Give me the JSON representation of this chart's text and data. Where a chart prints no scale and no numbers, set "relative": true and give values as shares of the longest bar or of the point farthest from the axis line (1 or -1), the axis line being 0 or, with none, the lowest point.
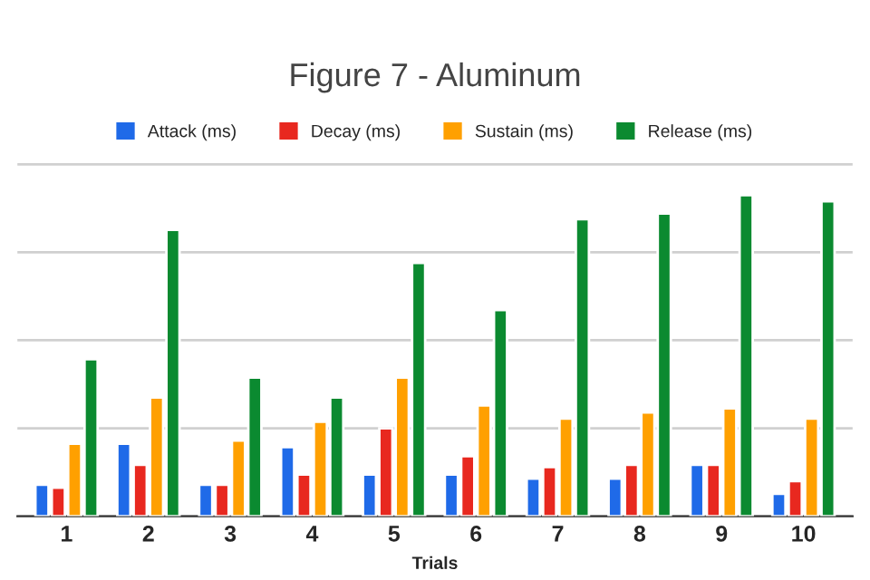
{
  "chart_data": {
    "type": "bar",
    "title": "Figure 7 - Aluminum",
    "xlabel": "Trials",
    "relative": true,
    "grid": "y",
    "legend": "top",
    "categories": [
      "1",
      "2",
      "3",
      "4",
      "5",
      "6",
      "7",
      "8",
      "9",
      "10"
    ],
    "series": [
      {
        "name": "Attack (ms)",
        "color": "#1f6ae8",
        "values": [
          0.098,
          0.226,
          0.098,
          0.215,
          0.13,
          0.13,
          0.117,
          0.117,
          0.16,
          0.07
        ]
      },
      {
        "name": "Decay (ms)",
        "color": "#e8281f",
        "values": [
          0.089,
          0.16,
          0.098,
          0.13,
          0.274,
          0.187,
          0.153,
          0.16,
          0.16,
          0.109
        ]
      },
      {
        "name": "Sustain (ms)",
        "color": "#ffa000",
        "values": [
          0.226,
          0.37,
          0.236,
          0.294,
          0.432,
          0.345,
          0.304,
          0.323,
          0.336,
          0.304
        ]
      },
      {
        "name": "Release (ms)",
        "color": "#0b8a30",
        "values": [
          0.489,
          0.892,
          0.432,
          0.37,
          0.789,
          0.642,
          0.925,
          0.943,
          1,
          0.981
        ]
      }
    ]
  }
}
